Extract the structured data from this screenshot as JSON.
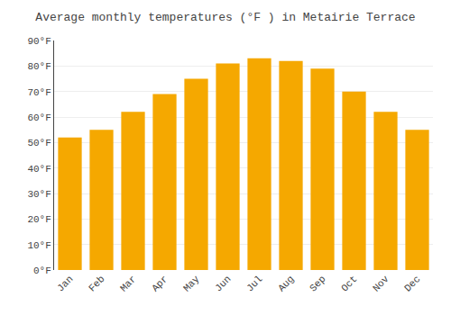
{
  "chart_data": {
    "type": "bar",
    "title": "Average monthly temperatures (°F ) in Metairie Terrace",
    "categories": [
      "Jan",
      "Feb",
      "Mar",
      "Apr",
      "May",
      "Jun",
      "Jul",
      "Aug",
      "Sep",
      "Oct",
      "Nov",
      "Dec"
    ],
    "values": [
      52,
      55,
      62,
      69,
      75,
      81,
      83,
      82,
      79,
      70,
      62,
      55
    ],
    "color": "#F5A800",
    "ylim": [
      0,
      90
    ],
    "yticks": [
      {
        "value": 0,
        "label": "0°F"
      },
      {
        "value": 10,
        "label": "10°F"
      },
      {
        "value": 20,
        "label": "20°F"
      },
      {
        "value": 30,
        "label": "30°F"
      },
      {
        "value": 40,
        "label": "40°F"
      },
      {
        "value": 50,
        "label": "50°F"
      },
      {
        "value": 60,
        "label": "60°F"
      },
      {
        "value": 70,
        "label": "70°F"
      },
      {
        "value": 80,
        "label": "80°F"
      },
      {
        "value": 90,
        "label": "90°F"
      }
    ],
    "grid": true
  }
}
